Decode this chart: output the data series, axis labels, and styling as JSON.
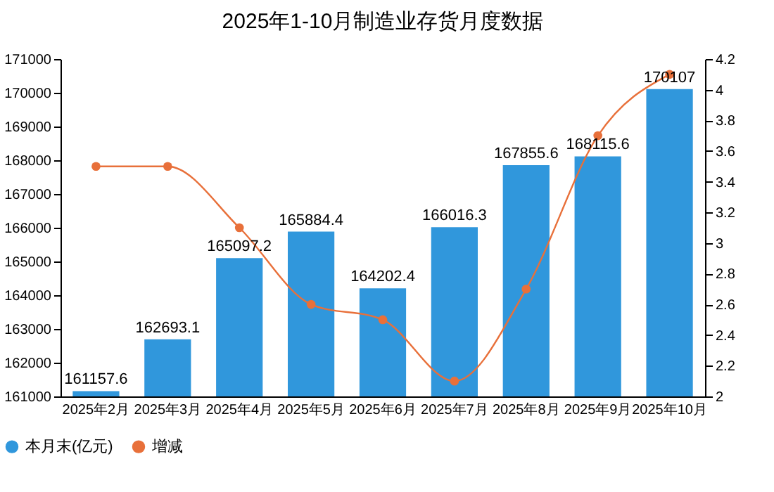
{
  "chart_data": {
    "type": "bar",
    "title": "2025年1-10月制造业存货月度数据",
    "categories": [
      "2025年2月",
      "2025年3月",
      "2025年4月",
      "2025年5月",
      "2025年6月",
      "2025年7月",
      "2025年8月",
      "2025年9月",
      "2025年10月"
    ],
    "series": [
      {
        "name": "本月末(亿元)",
        "color": "#3097dc",
        "values": [
          161157.6,
          162693.1,
          165097.2,
          165884.4,
          164202.4,
          166016.3,
          167855.6,
          168115.6,
          170107
        ],
        "value_labels": [
          "161157.6",
          "162693.1",
          "165097.2",
          "165884.4",
          "164202.4",
          "166016.3",
          "167855.6",
          "168115.6",
          "170107"
        ]
      },
      {
        "name": "增减",
        "type": "line",
        "axis": "y2",
        "color": "#e8703a",
        "marker": "circle",
        "values": [
          3.5,
          3.5,
          3.1,
          2.6,
          2.5,
          2.1,
          2.7,
          3.7,
          4.1
        ]
      }
    ],
    "ylim": [
      161000,
      171000
    ],
    "yticks": [
      161000,
      162000,
      163000,
      164000,
      165000,
      166000,
      167000,
      168000,
      169000,
      170000,
      171000
    ],
    "y2lim": [
      2,
      4.2
    ],
    "y2ticks": [
      2,
      2.2,
      2.4,
      2.6,
      2.8,
      3,
      3.2,
      3.4,
      3.6,
      3.8,
      4,
      4.2
    ],
    "grid": false,
    "legend": "bottom left"
  }
}
